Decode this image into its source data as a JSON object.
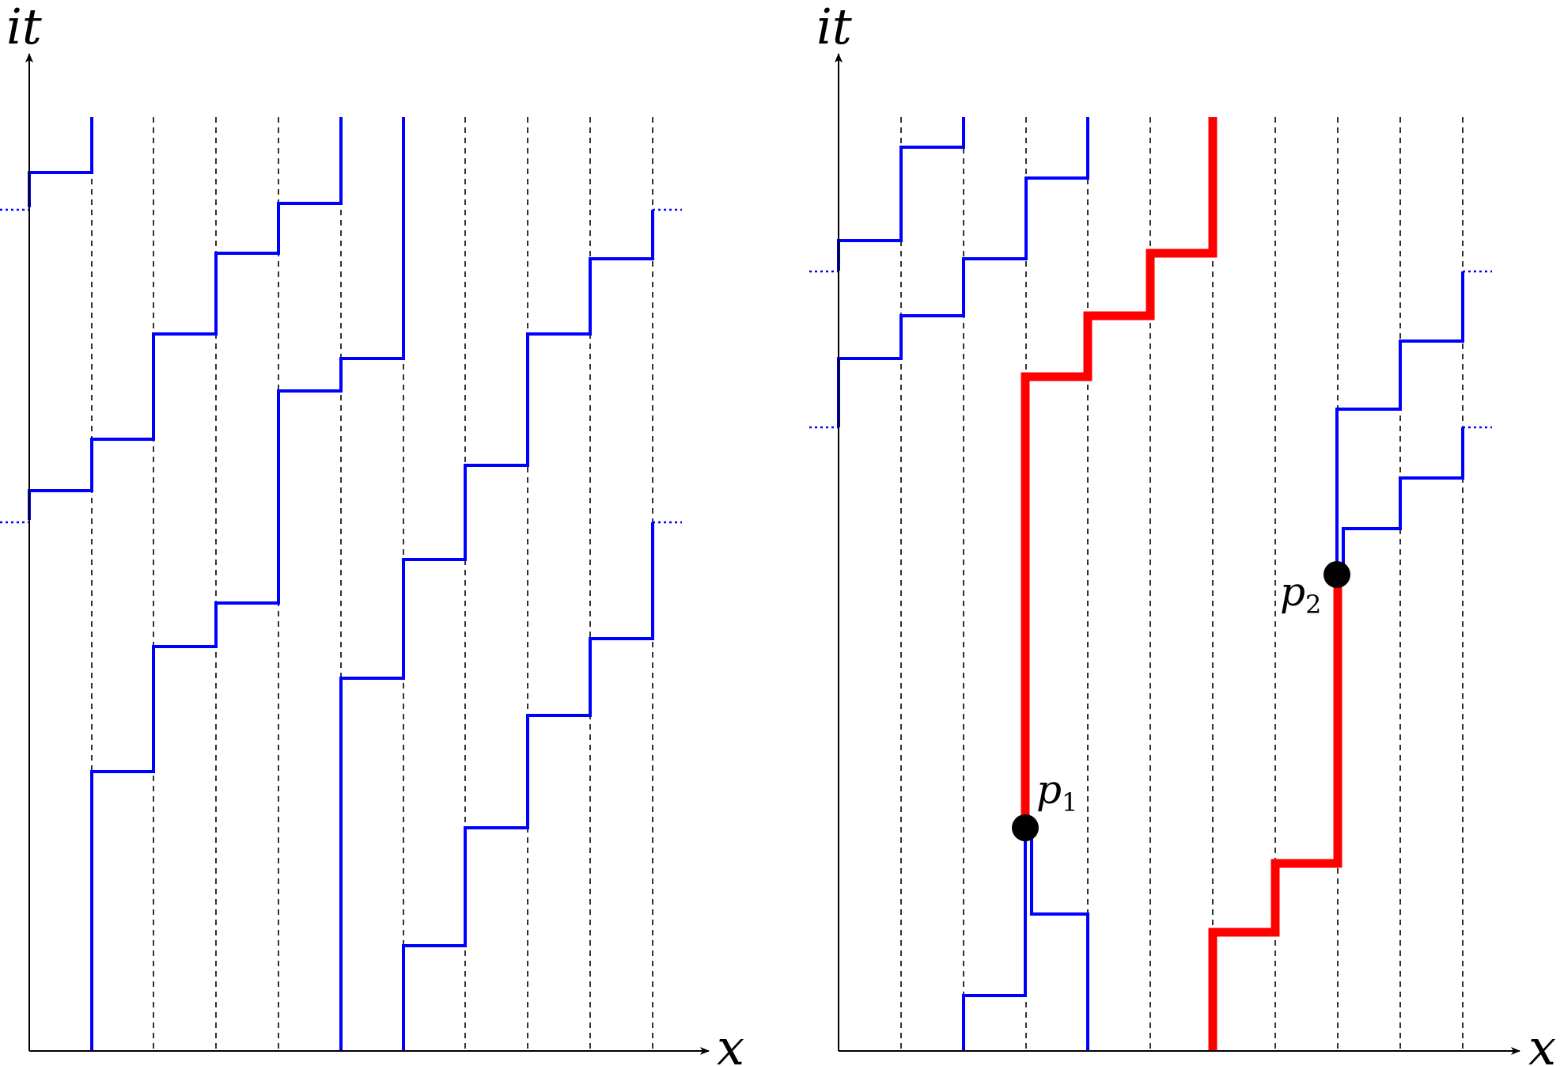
{
  "colors": {
    "axis": "#000000",
    "grid": "#000000",
    "path": "#0000ff",
    "highlight": "#ff0000",
    "point": "#000000"
  },
  "left_panel": {
    "y_axis_label": "it",
    "x_axis_label": "x"
  },
  "right_panel": {
    "y_axis_label": "it",
    "x_axis_label": "x",
    "points": [
      {
        "base": "p",
        "sub": "1"
      },
      {
        "base": "p",
        "sub": "2"
      }
    ]
  }
}
